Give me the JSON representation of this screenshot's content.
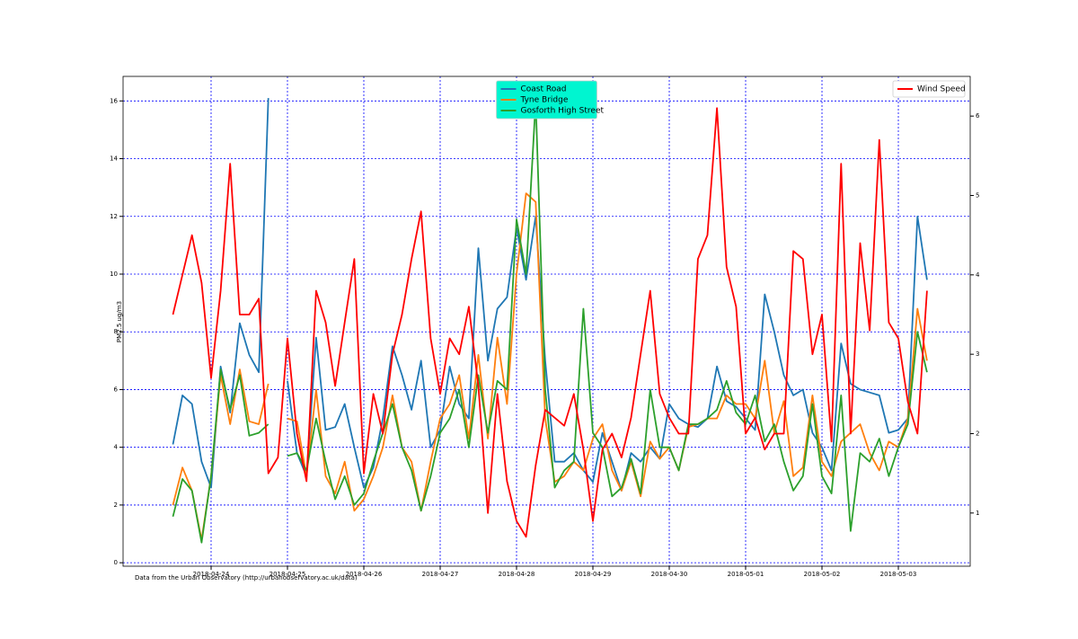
{
  "chart_data": {
    "type": "line",
    "ylabel": "PM2.5 ug/m3",
    "note": "Data from the Urban Observatory (http://urbanobservatory.ac.uk/data)",
    "x": [
      "2018-04-23T12:00",
      "2018-04-23T15:00",
      "2018-04-23T18:00",
      "2018-04-23T21:00",
      "2018-04-24T00:00",
      "2018-04-24T03:00",
      "2018-04-24T06:00",
      "2018-04-24T09:00",
      "2018-04-24T12:00",
      "2018-04-24T15:00",
      "2018-04-24T18:00",
      "2018-04-24T21:00",
      "2018-04-25T00:00",
      "2018-04-25T03:00",
      "2018-04-25T06:00",
      "2018-04-25T09:00",
      "2018-04-25T12:00",
      "2018-04-25T15:00",
      "2018-04-25T18:00",
      "2018-04-25T21:00",
      "2018-04-26T00:00",
      "2018-04-26T03:00",
      "2018-04-26T06:00",
      "2018-04-26T09:00",
      "2018-04-26T12:00",
      "2018-04-26T15:00",
      "2018-04-26T18:00",
      "2018-04-26T21:00",
      "2018-04-27T00:00",
      "2018-04-27T03:00",
      "2018-04-27T06:00",
      "2018-04-27T09:00",
      "2018-04-27T12:00",
      "2018-04-27T15:00",
      "2018-04-27T18:00",
      "2018-04-27T21:00",
      "2018-04-28T00:00",
      "2018-04-28T03:00",
      "2018-04-28T06:00",
      "2018-04-28T09:00",
      "2018-04-28T12:00",
      "2018-04-28T15:00",
      "2018-04-28T18:00",
      "2018-04-28T21:00",
      "2018-04-29T00:00",
      "2018-04-29T03:00",
      "2018-04-29T06:00",
      "2018-04-29T09:00",
      "2018-04-29T12:00",
      "2018-04-29T15:00",
      "2018-04-29T18:00",
      "2018-04-29T21:00",
      "2018-04-30T00:00",
      "2018-04-30T03:00",
      "2018-04-30T06:00",
      "2018-04-30T09:00",
      "2018-04-30T12:00",
      "2018-04-30T15:00",
      "2018-04-30T18:00",
      "2018-04-30T21:00",
      "2018-05-01T00:00",
      "2018-05-01T03:00",
      "2018-05-01T06:00",
      "2018-05-01T09:00",
      "2018-05-01T12:00",
      "2018-05-01T15:00",
      "2018-05-01T18:00",
      "2018-05-01T21:00",
      "2018-05-02T00:00",
      "2018-05-02T03:00",
      "2018-05-02T06:00",
      "2018-05-02T09:00",
      "2018-05-02T12:00",
      "2018-05-02T15:00",
      "2018-05-02T18:00",
      "2018-05-02T21:00",
      "2018-05-03T00:00",
      "2018-05-03T03:00",
      "2018-05-03T06:00",
      "2018-05-03T09:00"
    ],
    "series": [
      {
        "name": "Coast Road",
        "color": "#1f77b4",
        "axis": "y",
        "values": [
          4.1,
          5.8,
          5.5,
          3.5,
          2.6,
          6.8,
          5.2,
          8.3,
          7.2,
          6.6,
          16.1,
          null,
          6.3,
          3.8,
          3.0,
          7.8,
          4.6,
          4.7,
          5.5,
          4.0,
          2.6,
          3.3,
          5.0,
          7.5,
          6.5,
          5.3,
          7.0,
          4.0,
          4.6,
          6.8,
          5.5,
          5.0,
          10.9,
          7.0,
          8.8,
          9.2,
          11.6,
          9.8,
          12.0,
          7.0,
          3.5,
          3.5,
          3.8,
          3.2,
          2.8,
          4.5,
          3.5,
          2.5,
          3.8,
          3.5,
          4.0,
          3.6,
          5.5,
          5.0,
          4.8,
          4.7,
          5.0,
          6.8,
          5.6,
          5.4,
          5.0,
          4.6,
          9.3,
          8.0,
          6.5,
          5.8,
          6.0,
          4.5,
          4.0,
          3.2,
          7.6,
          6.2,
          6.0,
          5.9,
          5.8,
          4.5,
          4.6,
          5.0,
          12.0,
          9.8
        ]
      },
      {
        "name": "Tyne Bridge",
        "color": "#ff7f0e",
        "axis": "y",
        "values": [
          2.0,
          3.3,
          2.5,
          0.8,
          3.0,
          6.5,
          4.8,
          6.7,
          4.9,
          4.8,
          6.2,
          null,
          5.0,
          4.9,
          3.0,
          6.0,
          3.0,
          2.4,
          3.5,
          1.8,
          2.2,
          3.0,
          4.0,
          5.8,
          4.0,
          3.5,
          1.8,
          3.5,
          5.0,
          5.5,
          6.5,
          4.3,
          7.2,
          4.3,
          7.8,
          5.5,
          10.0,
          12.8,
          12.5,
          5.0,
          2.8,
          3.0,
          3.5,
          3.2,
          4.3,
          4.8,
          3.2,
          2.5,
          3.5,
          2.3,
          4.2,
          3.6,
          4.0,
          3.2,
          4.7,
          4.8,
          5.0,
          5.0,
          5.8,
          5.5,
          5.5,
          5.0,
          7.0,
          4.5,
          5.6,
          3.0,
          3.3,
          5.8,
          3.5,
          3.0,
          4.2,
          4.5,
          4.8,
          3.8,
          3.2,
          4.2,
          4.0,
          5.0,
          8.8,
          7.0
        ]
      },
      {
        "name": "Gosforth High Street",
        "color": "#2ca02c",
        "axis": "y",
        "values": [
          1.6,
          2.9,
          2.5,
          0.7,
          3.0,
          6.7,
          5.3,
          6.5,
          4.4,
          4.5,
          4.8,
          null,
          3.7,
          3.8,
          3.2,
          5.0,
          3.5,
          2.2,
          3.0,
          2.0,
          2.4,
          3.5,
          4.5,
          5.5,
          4.0,
          3.2,
          1.8,
          3.0,
          4.5,
          5.0,
          6.0,
          4.0,
          6.5,
          4.5,
          6.3,
          6.0,
          11.9,
          10.0,
          16.0,
          6.0,
          2.6,
          3.2,
          3.5,
          8.8,
          4.5,
          4.0,
          2.3,
          2.6,
          3.6,
          2.4,
          6.0,
          4.0,
          4.0,
          3.2,
          4.8,
          4.8,
          5.0,
          5.3,
          6.3,
          5.2,
          4.8,
          5.8,
          4.2,
          4.8,
          3.5,
          2.5,
          3.0,
          5.5,
          3.0,
          2.4,
          5.8,
          1.1,
          3.8,
          3.5,
          4.3,
          3.0,
          4.0,
          4.8,
          8.0,
          6.6
        ]
      },
      {
        "name": "Wind Speed",
        "color": "#ff0000",
        "axis": "y2",
        "values": [
          3.5,
          4.0,
          4.5,
          3.9,
          2.7,
          3.8,
          5.4,
          3.5,
          3.5,
          3.7,
          1.5,
          1.7,
          3.2,
          2.0,
          1.4,
          3.8,
          3.4,
          2.6,
          3.4,
          4.2,
          1.5,
          2.5,
          2.0,
          3.0,
          3.5,
          4.2,
          4.8,
          3.2,
          2.5,
          3.2,
          3.0,
          3.6,
          2.6,
          1.0,
          2.5,
          1.4,
          0.9,
          0.7,
          1.6,
          2.3,
          2.2,
          2.1,
          2.5,
          1.8,
          0.9,
          1.8,
          2.0,
          1.7,
          2.2,
          3.0,
          3.8,
          2.5,
          2.2,
          2.0,
          2.0,
          4.2,
          4.5,
          6.1,
          4.1,
          3.6,
          2.0,
          2.2,
          1.8,
          2.0,
          2.0,
          4.3,
          4.2,
          3.0,
          3.5,
          1.9,
          5.4,
          2.0,
          4.4,
          3.3,
          5.7,
          3.4,
          3.2,
          2.4,
          2.0,
          3.8
        ]
      }
    ],
    "xlim": [
      "2018-04-22T20:20",
      "2018-05-03T22:35"
    ],
    "xticks": [
      "2018-04-24",
      "2018-04-25",
      "2018-04-26",
      "2018-04-27",
      "2018-04-28",
      "2018-04-29",
      "2018-04-30",
      "2018-05-01",
      "2018-05-02",
      "2018-05-03"
    ],
    "ylim": [
      -0.12,
      16.85
    ],
    "yticks": [
      0,
      2,
      4,
      6,
      8,
      10,
      12,
      14,
      16
    ],
    "y2lim": [
      0.33,
      6.5
    ],
    "y2ticks": [
      1,
      2,
      3,
      4,
      5,
      6
    ],
    "grid": true,
    "grid_color": "#0000ff",
    "legend": {
      "y": "upper center",
      "y2": "upper right"
    },
    "legend_facecolor": "#00f5d0"
  }
}
